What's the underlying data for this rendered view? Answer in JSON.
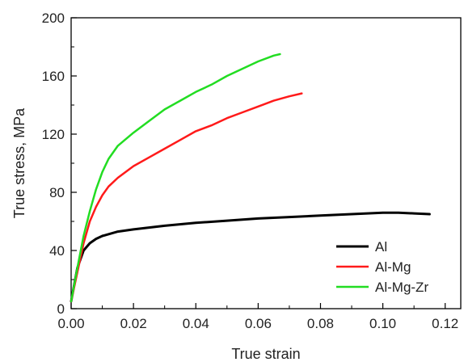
{
  "chart_data": {
    "type": "line",
    "xlabel": "True strain",
    "ylabel": "True stress, MPa",
    "xlim": [
      0,
      0.125
    ],
    "ylim": [
      0,
      200
    ],
    "xticks": [
      0.0,
      0.02,
      0.04,
      0.06,
      0.08,
      0.1,
      0.12
    ],
    "xtick_labels": [
      "0.00",
      "0.02",
      "0.04",
      "0.06",
      "0.08",
      "0.10",
      "0.12"
    ],
    "yticks": [
      0,
      40,
      80,
      120,
      160,
      200
    ],
    "ytick_labels": [
      "0",
      "40",
      "80",
      "120",
      "160",
      "200"
    ],
    "grid": false,
    "legend_position": "bottom-right",
    "series": [
      {
        "name": "Al",
        "color": "#000000",
        "x": [
          0.0,
          0.002,
          0.004,
          0.006,
          0.008,
          0.01,
          0.015,
          0.02,
          0.03,
          0.04,
          0.05,
          0.06,
          0.07,
          0.08,
          0.09,
          0.1,
          0.105,
          0.11,
          0.115
        ],
        "y": [
          5,
          28,
          40,
          45,
          48,
          50,
          53,
          54.5,
          57,
          59,
          60.5,
          62,
          63,
          64,
          65,
          66,
          66,
          65.5,
          65
        ]
      },
      {
        "name": "Al-Mg",
        "color": "#ff1a1a",
        "x": [
          0.0,
          0.002,
          0.004,
          0.006,
          0.008,
          0.01,
          0.012,
          0.015,
          0.02,
          0.025,
          0.03,
          0.035,
          0.04,
          0.045,
          0.05,
          0.055,
          0.06,
          0.065,
          0.07,
          0.074
        ],
        "y": [
          5,
          25,
          45,
          60,
          70,
          78,
          84,
          90,
          98,
          104,
          110,
          116,
          122,
          126,
          131,
          135,
          139,
          143,
          146,
          148
        ]
      },
      {
        "name": "Al-Mg-Zr",
        "color": "#22dd22",
        "x": [
          0.0,
          0.002,
          0.004,
          0.006,
          0.008,
          0.01,
          0.012,
          0.015,
          0.02,
          0.025,
          0.03,
          0.035,
          0.04,
          0.045,
          0.05,
          0.055,
          0.06,
          0.065,
          0.067
        ],
        "y": [
          5,
          28,
          50,
          67,
          82,
          94,
          103,
          112,
          121,
          129,
          137,
          143,
          149,
          154,
          160,
          165,
          170,
          174,
          175
        ]
      }
    ]
  }
}
